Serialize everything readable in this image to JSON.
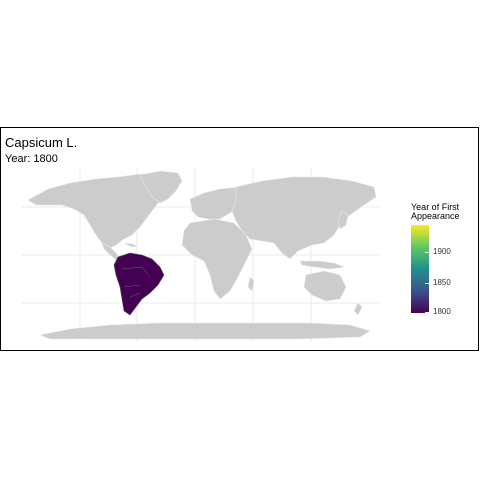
{
  "title": "Capsicum L.",
  "subtitle": "Year: 1800",
  "legend": {
    "title_line1": "Year of First",
    "title_line2": "Appearance",
    "ticks": [
      "1900",
      "1850",
      "1800"
    ]
  },
  "colors": {
    "land": "#cccccc",
    "border": "#e8e8e8",
    "grid": "#ebebeb",
    "highlight": "#440154",
    "highlight_border": "#5a5a5a"
  },
  "highlighted_regions": [
    "South America"
  ]
}
